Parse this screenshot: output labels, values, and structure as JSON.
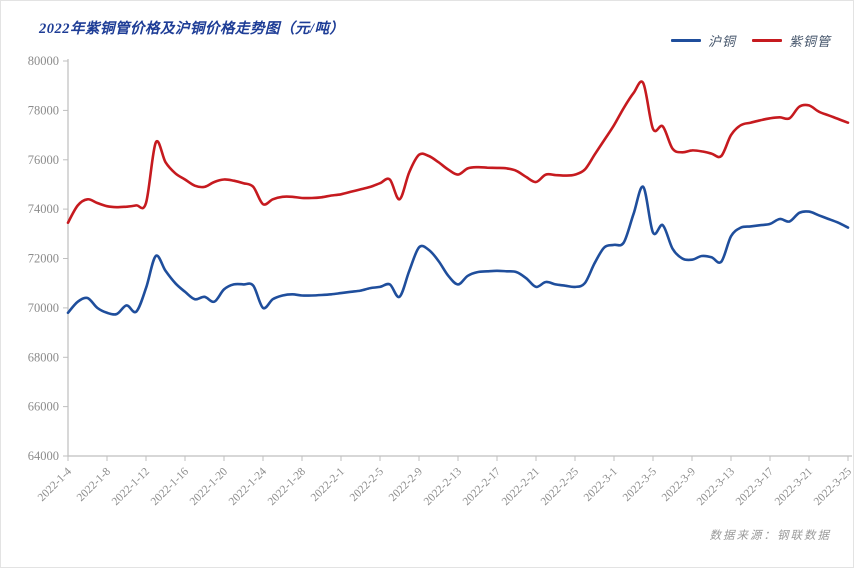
{
  "title": "2022年紫铜管价格及沪铜价格走势图（元/吨）",
  "source_note": "数据来源：钢联数据",
  "legend": [
    {
      "label": "沪铜",
      "color": "#1f4e9c"
    },
    {
      "label": "紫铜管",
      "color": "#c61a1f"
    }
  ],
  "colors": {
    "title": "#1e3d96",
    "axis": "#bfbfbf",
    "tick_label": "#8c8c8c",
    "series_blue": "#1f4e9c",
    "series_red": "#c61a1f",
    "background": "#ffffff"
  },
  "chart_data": {
    "type": "line",
    "title": "2022年紫铜管价格及沪铜价格走势图（元/吨）",
    "xlabel": "",
    "ylabel": "",
    "ylim": [
      64000,
      80000
    ],
    "y_tick_step": 2000,
    "x_tick_every": 4,
    "grid": false,
    "legend_position": "top-right",
    "x": [
      "2022-1-4",
      "2022-1-5",
      "2022-1-6",
      "2022-1-7",
      "2022-1-8",
      "2022-1-9",
      "2022-1-10",
      "2022-1-11",
      "2022-1-12",
      "2022-1-13",
      "2022-1-14",
      "2022-1-15",
      "2022-1-16",
      "2022-1-17",
      "2022-1-18",
      "2022-1-19",
      "2022-1-20",
      "2022-1-21",
      "2022-1-22",
      "2022-1-23",
      "2022-1-24",
      "2022-1-25",
      "2022-1-26",
      "2022-1-27",
      "2022-1-28",
      "2022-1-29",
      "2022-1-30",
      "2022-1-31",
      "2022-2-1",
      "2022-2-2",
      "2022-2-3",
      "2022-2-4",
      "2022-2-5",
      "2022-2-6",
      "2022-2-7",
      "2022-2-8",
      "2022-2-9",
      "2022-2-10",
      "2022-2-11",
      "2022-2-12",
      "2022-2-13",
      "2022-2-14",
      "2022-2-15",
      "2022-2-16",
      "2022-2-17",
      "2022-2-18",
      "2022-2-19",
      "2022-2-20",
      "2022-2-21",
      "2022-2-22",
      "2022-2-23",
      "2022-2-24",
      "2022-2-25",
      "2022-2-26",
      "2022-2-27",
      "2022-2-28",
      "2022-3-1",
      "2022-3-2",
      "2022-3-3",
      "2022-3-4",
      "2022-3-5",
      "2022-3-6",
      "2022-3-7",
      "2022-3-8",
      "2022-3-9",
      "2022-3-10",
      "2022-3-11",
      "2022-3-12",
      "2022-3-13",
      "2022-3-14",
      "2022-3-15",
      "2022-3-16",
      "2022-3-17",
      "2022-3-18",
      "2022-3-19",
      "2022-3-20",
      "2022-3-21",
      "2022-3-22",
      "2022-3-23",
      "2022-3-24",
      "2022-3-25"
    ],
    "series": [
      {
        "name": "沪铜",
        "color": "#1f4e9c",
        "values": [
          69800,
          70250,
          70400,
          70000,
          69800,
          69750,
          70100,
          69850,
          70800,
          72100,
          71500,
          71000,
          70650,
          70350,
          70450,
          70250,
          70750,
          70950,
          70950,
          70900,
          70000,
          70350,
          70500,
          70550,
          70500,
          70500,
          70520,
          70550,
          70600,
          70650,
          70700,
          70800,
          70850,
          70950,
          70450,
          71500,
          72450,
          72350,
          71900,
          71300,
          70950,
          71300,
          71450,
          71480,
          71500,
          71480,
          71450,
          71200,
          70850,
          71050,
          70950,
          70900,
          70850,
          71000,
          71800,
          72450,
          72550,
          72650,
          73800,
          74900,
          73050,
          73350,
          72400,
          72000,
          71950,
          72100,
          72050,
          71870,
          72900,
          73250,
          73300,
          73350,
          73400,
          73600,
          73500,
          73850,
          73900,
          73750,
          73600,
          73450,
          73250
        ]
      },
      {
        "name": "紫铜管",
        "color": "#c61a1f",
        "values": [
          73450,
          74150,
          74400,
          74250,
          74120,
          74080,
          74100,
          74150,
          74250,
          76700,
          75900,
          75450,
          75200,
          74950,
          74900,
          75100,
          75200,
          75150,
          75050,
          74900,
          74200,
          74400,
          74500,
          74500,
          74450,
          74450,
          74480,
          74550,
          74600,
          74700,
          74800,
          74900,
          75050,
          75200,
          74400,
          75500,
          76200,
          76150,
          75900,
          75600,
          75400,
          75650,
          75700,
          75680,
          75670,
          75650,
          75550,
          75300,
          75100,
          75400,
          75380,
          75360,
          75400,
          75600,
          76200,
          76800,
          77400,
          78100,
          78700,
          79100,
          77250,
          77350,
          76450,
          76300,
          76380,
          76340,
          76250,
          76150,
          77000,
          77400,
          77500,
          77600,
          77680,
          77720,
          77680,
          78150,
          78200,
          77950,
          77800,
          77650,
          77500
        ]
      }
    ]
  }
}
